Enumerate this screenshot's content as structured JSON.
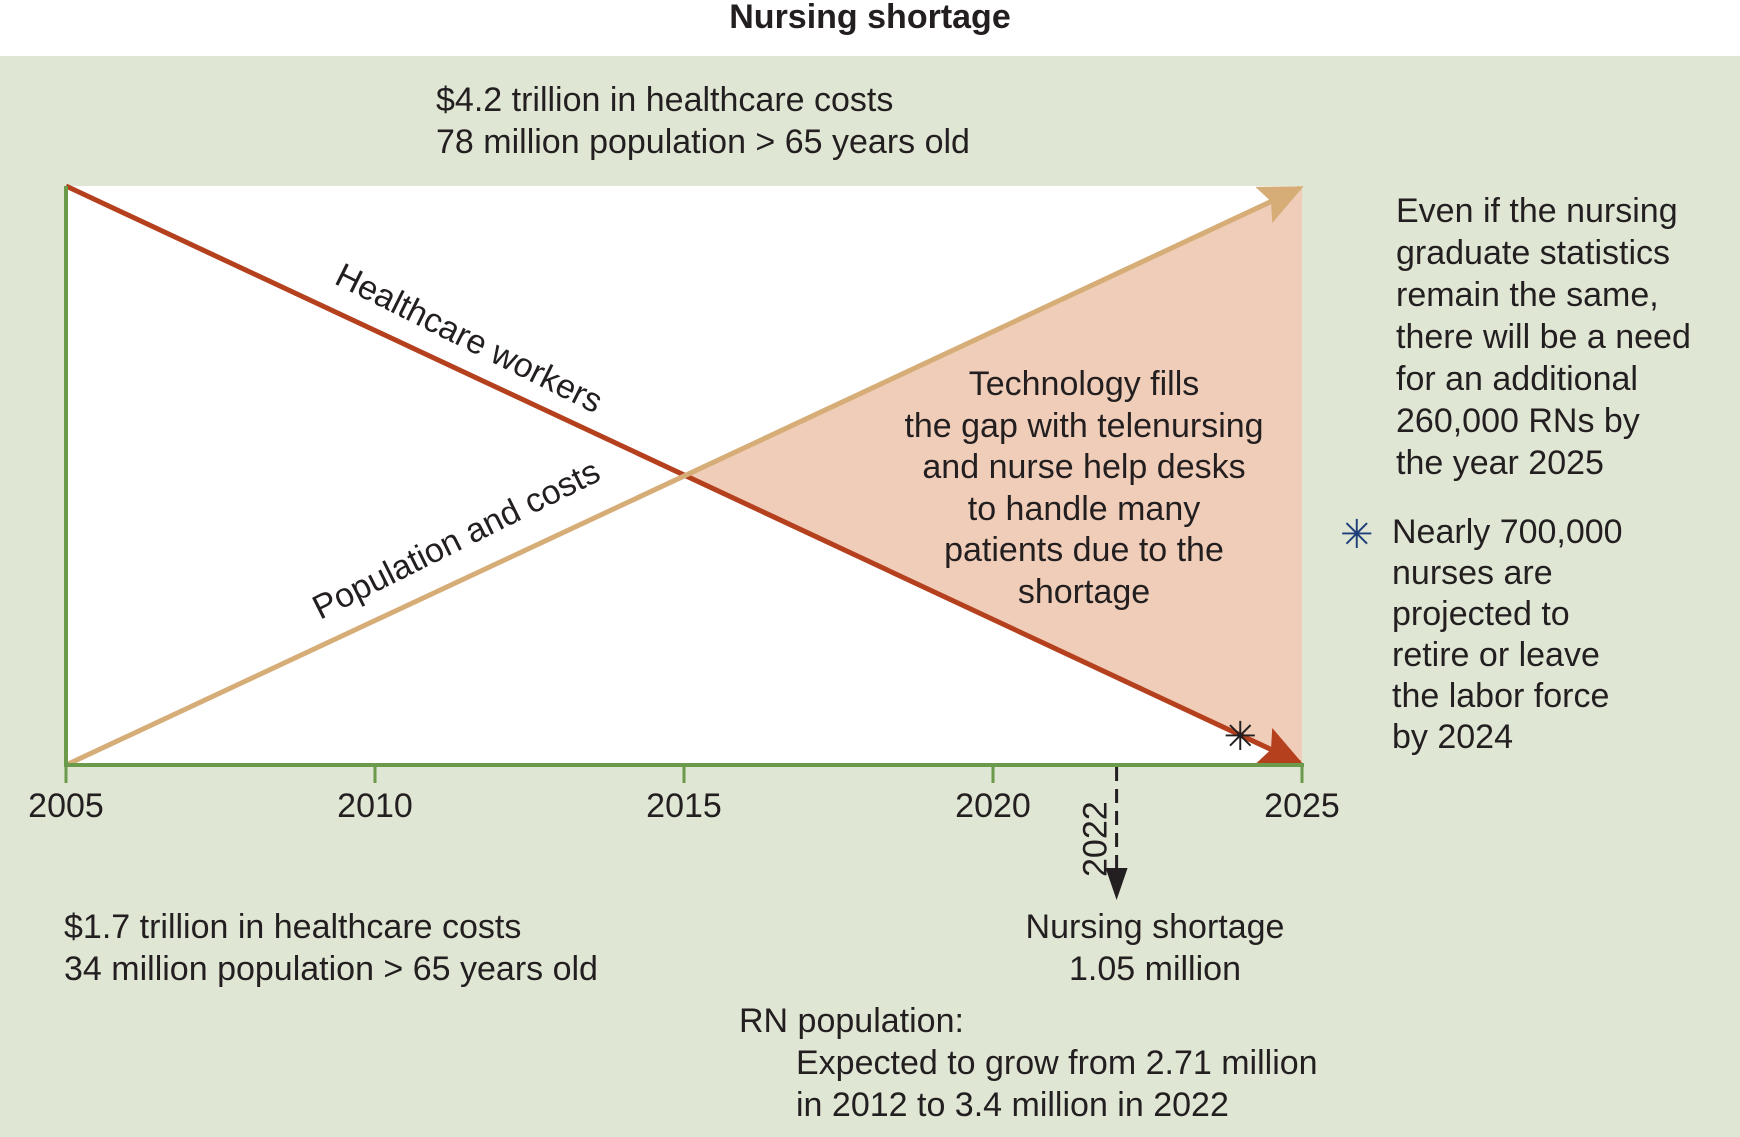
{
  "title": "Nursing shortage",
  "top_annotation": {
    "line1": "$4.2 trillion in healthcare costs",
    "line2": "78 million population > 65 years old"
  },
  "bottom_left_annotation": {
    "line1": "$1.7 trillion in healthcare costs",
    "line2": "34 million population > 65 years old"
  },
  "gap_text": "Technology fills\nthe gap with telenursing\nand nurse help desks\nto handle many\npatients due to the\nshortage",
  "side_note": "Even if the nursing\ngraduate statistics\nremain the same,\nthere will be a need\nfor an additional\n260,000 RNs by\nthe year 2025",
  "retire_note": {
    "marker": "✳",
    "text": "Nearly 700,000\nnurses are\nprojected to\nretire or leave\nthe labor force\nby 2024"
  },
  "shortage_marker_year": "2022",
  "shortage_note": {
    "line1": "Nursing shortage",
    "line2": "1.05 million"
  },
  "rn_population": {
    "label": "RN population:",
    "line1": "Expected to grow from 2.71 million",
    "line2": "in 2012 to 3.4 million in 2022"
  },
  "colors": {
    "panel_bg": "#e0e6d4",
    "axis": "#6a9a4a",
    "workers_line": "#b5401d",
    "population_line": "#d6ad77",
    "gap_fill": "#f0cdb8",
    "asterisk": "#1f3f7a"
  },
  "chart_data": {
    "type": "line",
    "x_ticks": [
      "2005",
      "2010",
      "2015",
      "2020",
      "2025"
    ],
    "xlim": [
      2005,
      2025
    ],
    "ylim": [
      0,
      1
    ],
    "series": [
      {
        "name": "Healthcare workers",
        "x": [
          2005,
          2025
        ],
        "y": [
          1,
          0
        ]
      },
      {
        "name": "Population and costs",
        "x": [
          2005,
          2025
        ],
        "y": [
          0,
          1
        ]
      }
    ],
    "gap_region": {
      "x_start": 2015,
      "x_end": 2025
    },
    "marker_year": 2024,
    "dashed_marker_year": 2022
  }
}
